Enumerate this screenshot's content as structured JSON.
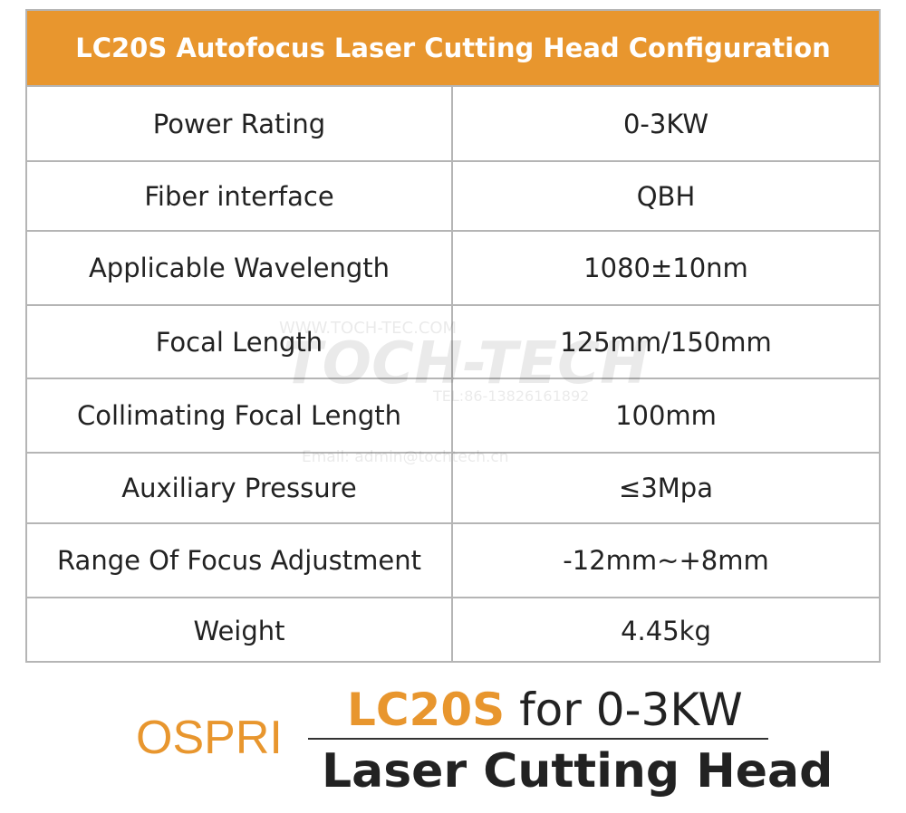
{
  "header": {
    "title": "LC20S Autofocus Laser Cutting Head Configuration"
  },
  "table": {
    "rows": [
      [
        "Power Rating",
        "0-3KW"
      ],
      [
        "Fiber interface",
        "QBH"
      ],
      [
        "Applicable Wavelength",
        "1080±10nm"
      ],
      [
        "Focal Length",
        "125mm/150mm"
      ],
      [
        "Collimating Focal Length",
        "100mm"
      ],
      [
        "Auxiliary Pressure",
        "≤3Mpa"
      ],
      [
        "Range Of Focus Adjustment",
        "-12mm~+8mm"
      ],
      [
        "Weight",
        "4.45kg"
      ]
    ]
  },
  "watermark": {
    "url": "WWW.TOCH-TEC.COM",
    "logo": "TOCH-TECH",
    "tel": "TEL:86-13826161892",
    "email": "Email: admin@tochtech.cn"
  },
  "footer": {
    "brand": "OSPRI",
    "model": "LC20S",
    "tagline": "for 0-3KW",
    "subtitle": "Laser Cutting Head"
  }
}
